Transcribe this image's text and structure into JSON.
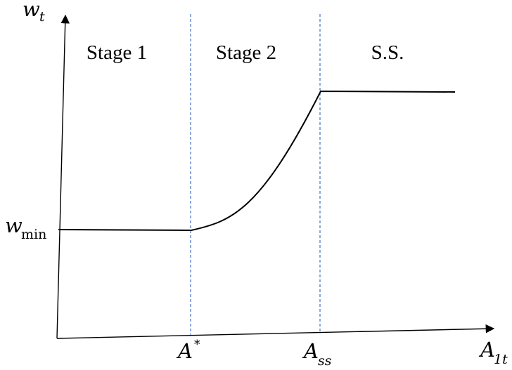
{
  "diagram": {
    "y_axis": {
      "symbol": "w",
      "subscript": "t"
    },
    "x_axis": {
      "symbol": "A",
      "subscript": "1t"
    },
    "stages": {
      "stage1": "Stage 1",
      "stage2": "Stage 2",
      "steady_state": "S.S."
    },
    "thresholds": {
      "a_star": {
        "symbol": "A",
        "superscript": "*"
      },
      "a_ss": {
        "symbol": "A",
        "subscript": "ss"
      }
    },
    "y_level": {
      "symbol": "w",
      "subscript": "min"
    },
    "colors": {
      "axis": "#000000",
      "curve": "#000000",
      "divider": "#4472C4",
      "background": "#ffffff"
    }
  }
}
